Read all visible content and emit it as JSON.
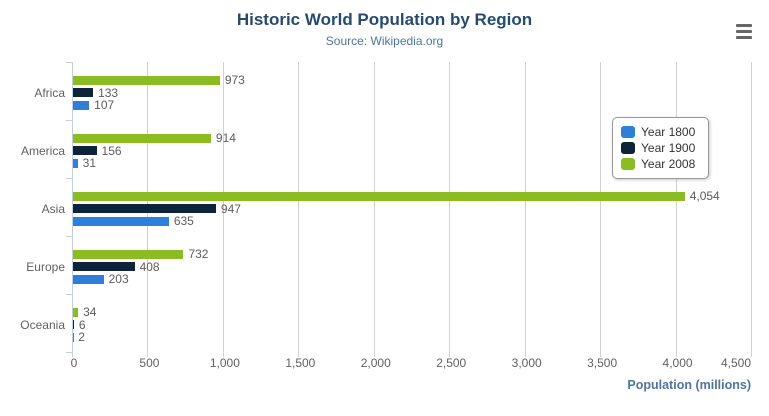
{
  "header": {
    "title": "Historic World Population by Region",
    "subtitle": "Source: Wikipedia.org"
  },
  "export_menu": {
    "icon": "hamburger-menu-icon"
  },
  "colors": {
    "title": "#274b6d",
    "subtitle": "#4d759e",
    "axis_label": "#606060",
    "axis_title": "#4d759e",
    "data_label": "#5c5c5c",
    "grid": "#d0d0d0",
    "axis_line": "#c0d0e0",
    "legend_border": "#999999",
    "legend_text": "#333333",
    "menu_icon": "#666666"
  },
  "chart_data": {
    "type": "bar",
    "orientation": "horizontal",
    "title": "Historic World Population by Region",
    "subtitle": "Source: Wikipedia.org",
    "categories": [
      "Africa",
      "America",
      "Asia",
      "Europe",
      "Oceania"
    ],
    "series": [
      {
        "name": "Year 1800",
        "color": "#2f7ed8",
        "values": [
          107,
          31,
          635,
          203,
          2
        ]
      },
      {
        "name": "Year 1900",
        "color": "#0d233a",
        "values": [
          133,
          156,
          947,
          408,
          6
        ]
      },
      {
        "name": "Year 2008",
        "color": "#8bbc21",
        "values": [
          973,
          914,
          4054,
          732,
          34
        ]
      }
    ],
    "group_order_top_to_bottom": [
      "Year 2008",
      "Year 1900",
      "Year 1800"
    ],
    "data_labels": [
      "973",
      "133",
      "107",
      "914",
      "156",
      "31",
      "4,054",
      "947",
      "635",
      "732",
      "408",
      "203",
      "34",
      "6",
      "2"
    ],
    "xlabel": "Population (millions)",
    "ylabel": "",
    "xlim": [
      0,
      4500
    ],
    "xticks": [
      0,
      500,
      1000,
      1500,
      2000,
      2500,
      3000,
      3500,
      4000,
      4500
    ],
    "xtick_labels": [
      "0",
      "500",
      "1,000",
      "1,500",
      "2,000",
      "2,500",
      "3,000",
      "3,500",
      "4,000",
      "4,500"
    ],
    "grid": "vertical-only",
    "legend": {
      "position": "right",
      "items": [
        "Year 1800",
        "Year 1900",
        "Year 2008"
      ]
    }
  }
}
